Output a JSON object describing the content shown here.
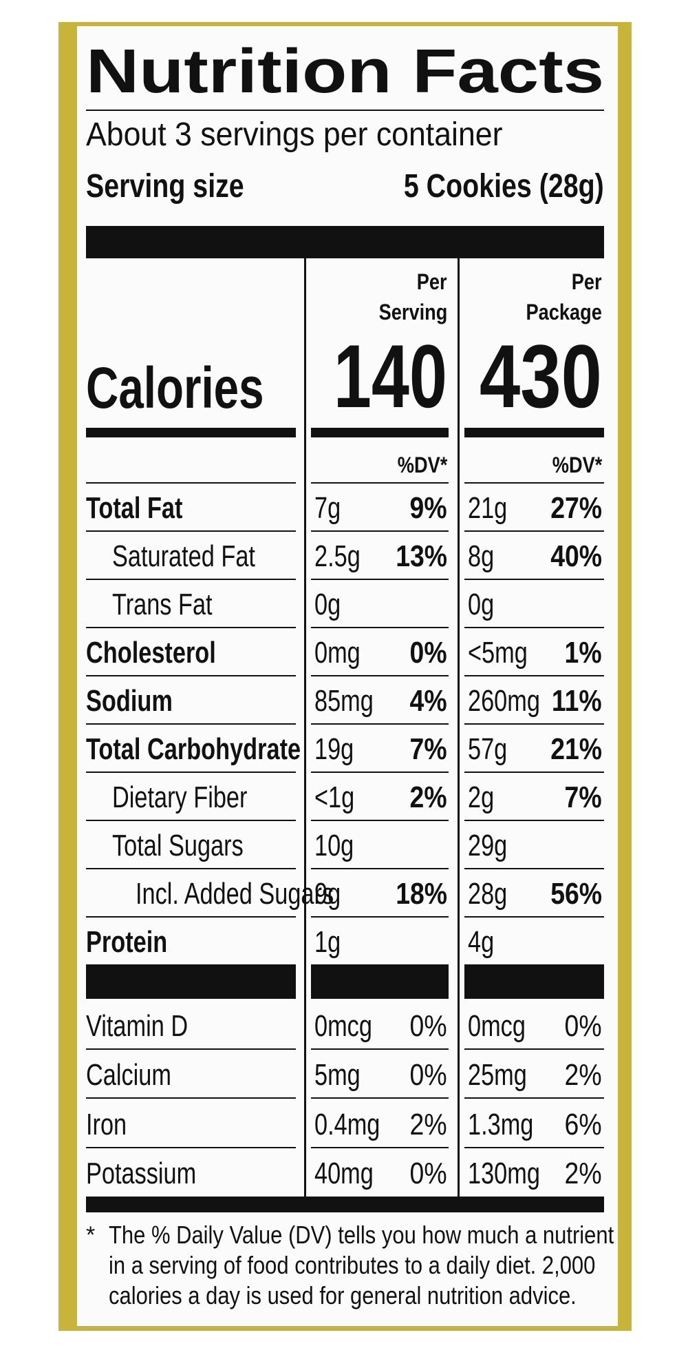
{
  "title": "Nutrition Facts",
  "servings_per_container": "About 3 servings per container",
  "serving_size": {
    "label": "Serving size",
    "value": "5 Cookies (28g)"
  },
  "calories_label": "Calories",
  "columns": [
    {
      "header": [
        "Per",
        "Serving"
      ],
      "calories": 140,
      "dv_header": "%DV*"
    },
    {
      "header": [
        "Per",
        "Package"
      ],
      "calories": 430,
      "dv_header": "%DV*"
    }
  ],
  "nutrients": [
    {
      "name": "Total Fat",
      "amounts": [
        "7g",
        "21g"
      ],
      "dv": [
        "9%",
        "27%"
      ]
    },
    {
      "name": "Saturated Fat",
      "amounts": [
        "2.5g",
        "8g"
      ],
      "dv": [
        "13%",
        "40%"
      ]
    },
    {
      "name": "Trans Fat",
      "amounts": [
        "0g",
        "0g"
      ]
    },
    {
      "name": "Cholesterol",
      "amounts": [
        "0mg",
        "<5mg"
      ],
      "dv": [
        "0%",
        "1%"
      ]
    },
    {
      "name": "Sodium",
      "amounts": [
        "85mg",
        "260mg"
      ],
      "dv": [
        "4%",
        "11%"
      ]
    },
    {
      "name": "Total Carbohydrate",
      "amounts": [
        "19g",
        "57g"
      ],
      "dv": [
        "7%",
        "21%"
      ]
    },
    {
      "name": "Dietary Fiber",
      "amounts": [
        "<1g",
        "2g"
      ],
      "dv": [
        "2%",
        "7%"
      ]
    },
    {
      "name": "Total Sugars",
      "amounts": [
        "10g",
        "29g"
      ]
    },
    {
      "name": "Incl. Added Sugars",
      "amounts": [
        "9g",
        "28g"
      ],
      "dv": [
        "18%",
        "56%"
      ]
    },
    {
      "name": "Protein",
      "amounts": [
        "1g",
        "4g"
      ]
    }
  ],
  "micronutrients": [
    {
      "name": "Vitamin D",
      "amounts": [
        "0mcg",
        "0mcg"
      ],
      "dv": [
        "0%",
        "0%"
      ]
    },
    {
      "name": "Calcium",
      "amounts": [
        "5mg",
        "25mg"
      ],
      "dv": [
        "0%",
        "2%"
      ]
    },
    {
      "name": "Iron",
      "amounts": [
        "0.4mg",
        "1.3mg"
      ],
      "dv": [
        "2%",
        "6%"
      ]
    },
    {
      "name": "Potassium",
      "amounts": [
        "40mg",
        "130mg"
      ],
      "dv": [
        "0%",
        "2%"
      ]
    }
  ],
  "footnote": {
    "mark": "*",
    "lines": [
      "The % Daily Value (DV) tells you how much a nutrient",
      "in a serving of food contributes to a daily diet. 2,000",
      "calories a day is used for general nutrition advice."
    ]
  }
}
